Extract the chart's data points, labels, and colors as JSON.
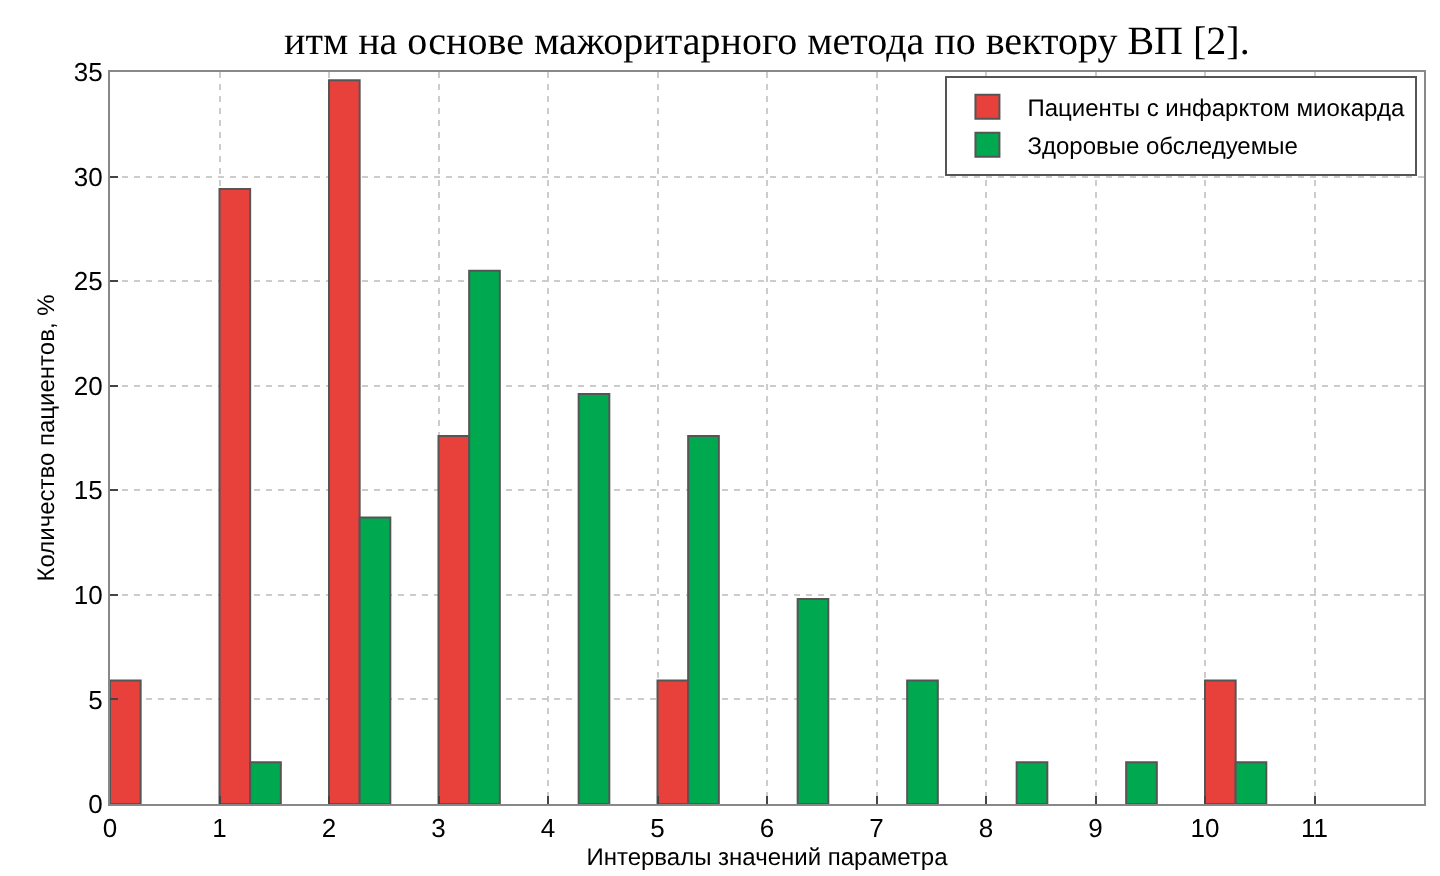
{
  "chart_data": {
    "type": "bar",
    "xlabel": "Интервалы значений параметра",
    "ylabel": "Количество пациентов, %",
    "annotations": [
      "итм на основе мажоритарного метода по вектору ВП [2]."
    ],
    "series": [
      {
        "name": "Пациенты с инфарктом миокарда",
        "color": "#e8413c",
        "x": [
          0,
          1,
          2,
          3,
          5,
          10
        ],
        "values": [
          5.9,
          29.4,
          34.6,
          17.6,
          5.9,
          5.9
        ]
      },
      {
        "name": "Здоровые обследуемые",
        "color": "#00a84f",
        "x": [
          1,
          2,
          3,
          4,
          5,
          6,
          7,
          8,
          9,
          10
        ],
        "values": [
          2,
          13.7,
          25.5,
          19.6,
          17.6,
          9.8,
          5.9,
          2,
          2,
          2
        ]
      }
    ],
    "xlim": [
      0,
      12
    ],
    "xticks": [
      0,
      1,
      2,
      3,
      4,
      5,
      6,
      7,
      8,
      9,
      10,
      11
    ],
    "ylim": [
      0,
      35
    ],
    "yticks": [
      0,
      5,
      10,
      15,
      20,
      25,
      30,
      35
    ],
    "grid": true,
    "legend": "top right"
  }
}
